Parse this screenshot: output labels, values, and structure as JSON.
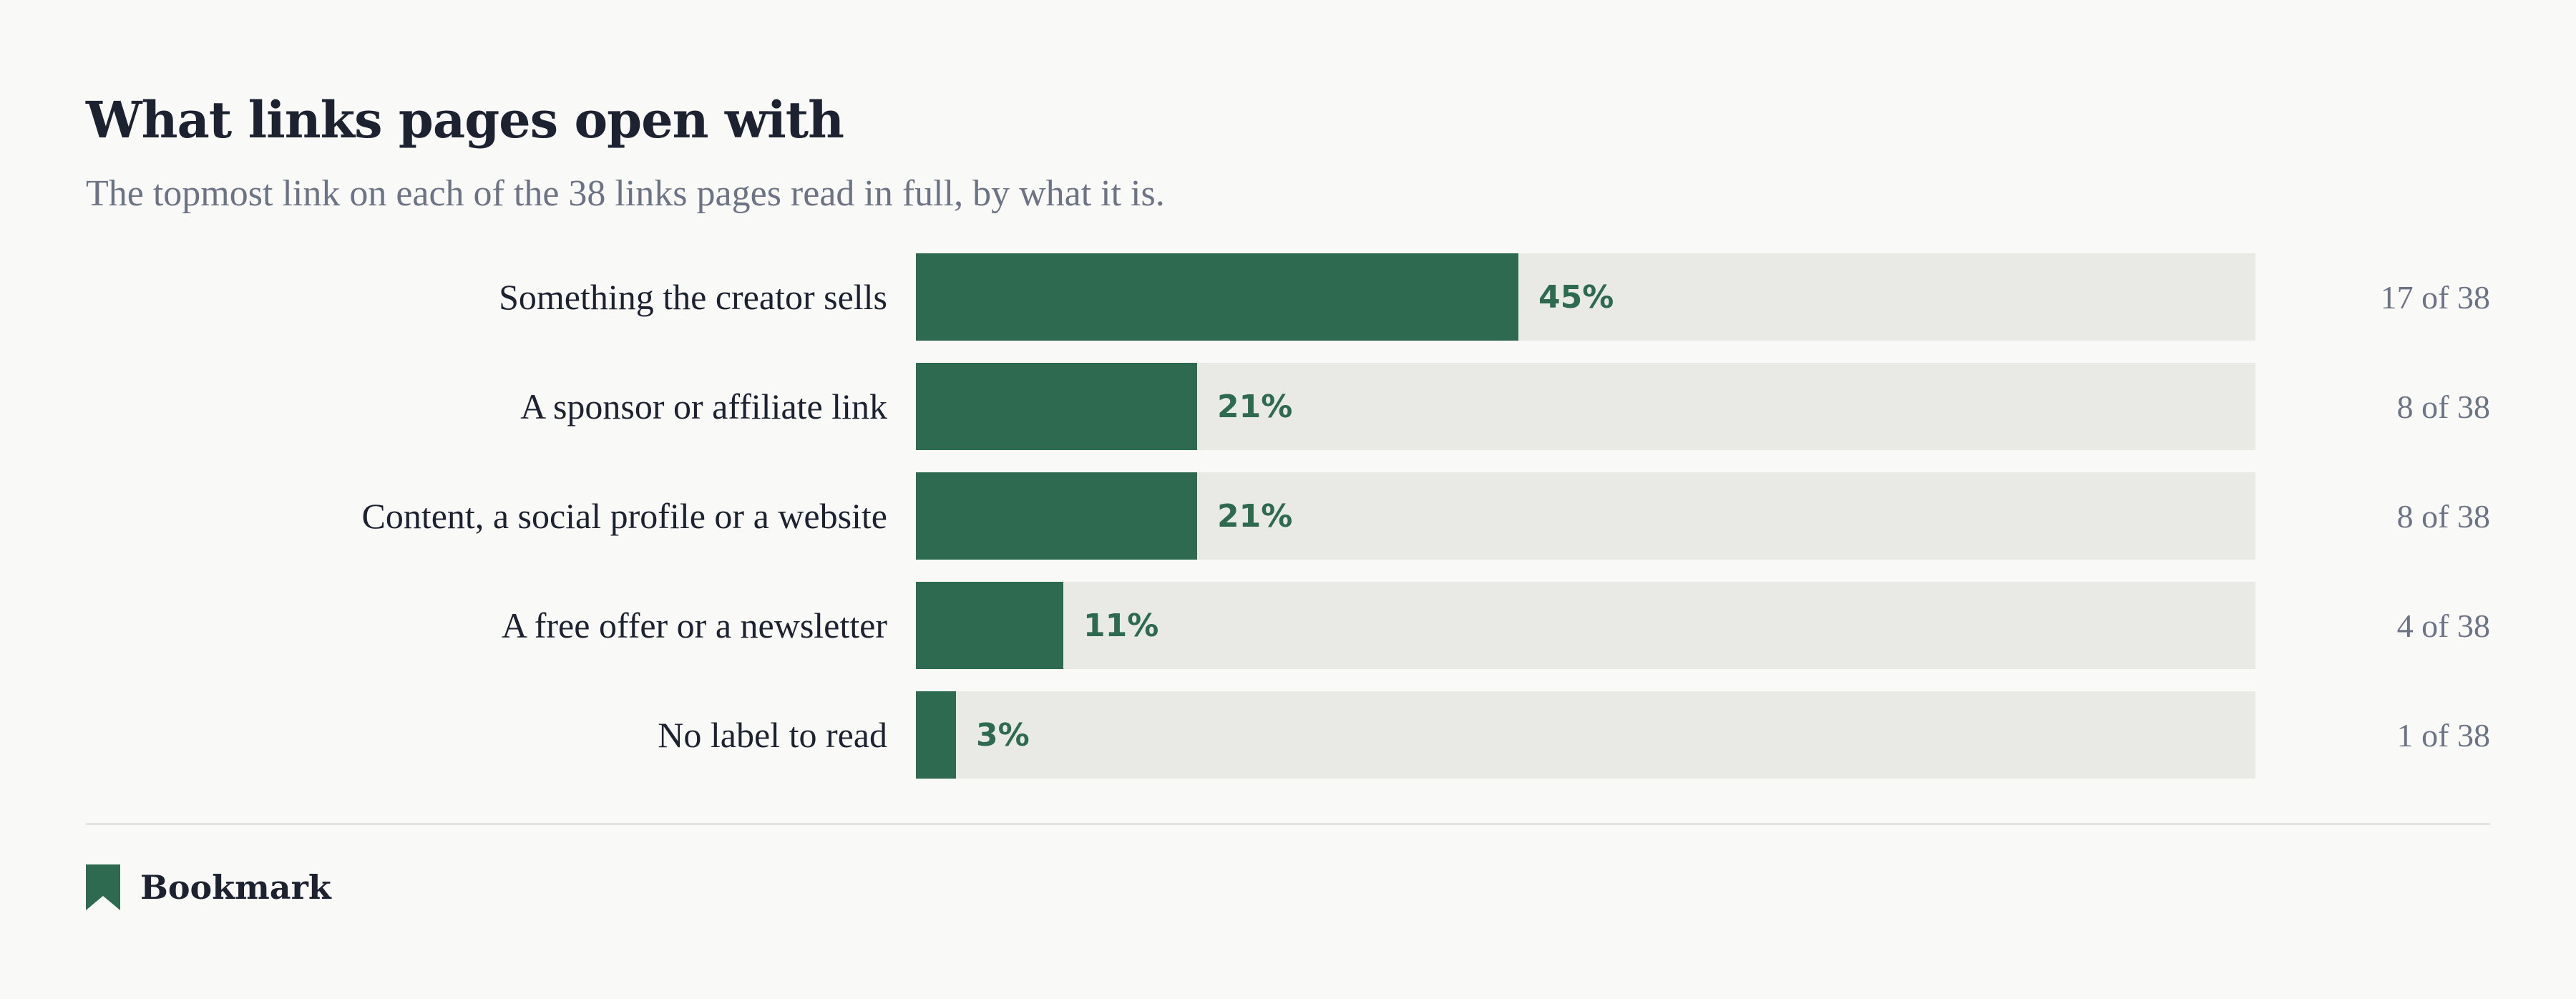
{
  "header": {
    "title": "What links pages open with",
    "subtitle": "The topmost link on each of the 38 links pages read in full, by what it is."
  },
  "chart_data": {
    "type": "bar",
    "orientation": "horizontal",
    "title": "What links pages open with",
    "subtitle": "The topmost link on each of the 38 links pages read in full, by what it is.",
    "total": 38,
    "xlim": [
      0,
      100
    ],
    "grid": false,
    "categories": [
      "Something the creator sells",
      "A sponsor or affiliate link",
      "Content, a social profile or a website",
      "A free offer or a newsletter",
      "No label to read"
    ],
    "values": [
      45,
      21,
      21,
      11,
      3
    ],
    "value_labels": [
      "45%",
      "21%",
      "21%",
      "11%",
      "3%"
    ],
    "counts": [
      17,
      8,
      8,
      4,
      1
    ],
    "count_labels": [
      "17 of 38",
      "8 of 38",
      "8 of 38",
      "4 of 38",
      "1 of 38"
    ]
  },
  "footer": {
    "brand": "Bookmark",
    "icon": "bookmark-icon"
  },
  "colors": {
    "background": "#f9f9f7",
    "bar": "#2e6a50",
    "track": "#e9eae5",
    "text": "#1c2230",
    "muted": "#6b7385",
    "divider": "#e3e4e0"
  }
}
